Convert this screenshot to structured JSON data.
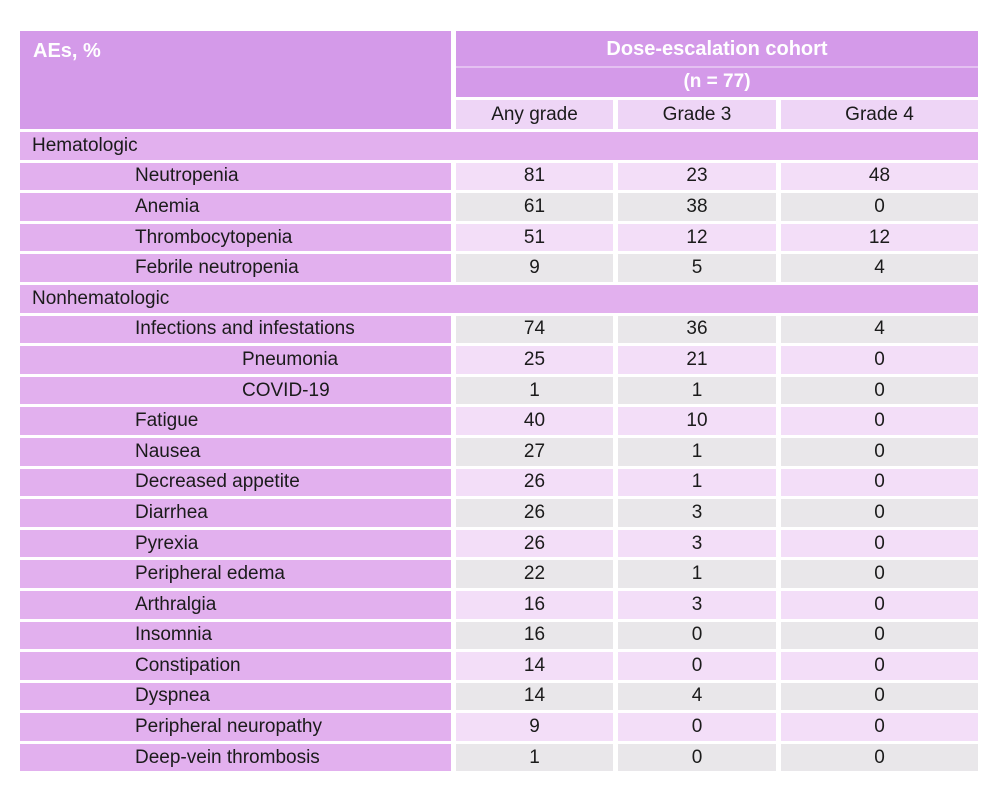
{
  "palette": {
    "background": "#ffffff",
    "header_purple": "#d49ae9",
    "row_purple": "#e2b0ee",
    "subheader_lavender": "#eed5f6",
    "cell_pink": "#f3def8",
    "cell_gray": "#e9e7ea",
    "header_text": "#ffffff",
    "body_text": "#1b1b1b"
  },
  "header": {
    "aes_label": "AEs, %",
    "cohort_title": "Dose-escalation cohort",
    "cohort_n": "(n = 77)",
    "columns": [
      "Any grade",
      "Grade 3",
      "Grade 4"
    ]
  },
  "rows": [
    {
      "type": "section",
      "label": "Hematologic"
    },
    {
      "type": "item",
      "indent": 1,
      "label": "Neutropenia",
      "values": [
        81,
        23,
        48
      ]
    },
    {
      "type": "item",
      "indent": 1,
      "label": "Anemia",
      "values": [
        61,
        38,
        0
      ]
    },
    {
      "type": "item",
      "indent": 1,
      "label": "Thrombocytopenia",
      "values": [
        51,
        12,
        12
      ]
    },
    {
      "type": "item",
      "indent": 1,
      "label": "Febrile neutropenia",
      "values": [
        9,
        5,
        4
      ]
    },
    {
      "type": "section",
      "label": "Nonhematologic"
    },
    {
      "type": "item",
      "indent": 1,
      "label": "Infections and infestations",
      "values": [
        74,
        36,
        4
      ]
    },
    {
      "type": "item",
      "indent": 2,
      "label": "Pneumonia",
      "values": [
        25,
        21,
        0
      ]
    },
    {
      "type": "item",
      "indent": 2,
      "label": "COVID-19",
      "values": [
        1,
        1,
        0
      ]
    },
    {
      "type": "item",
      "indent": 1,
      "label": "Fatigue",
      "values": [
        40,
        10,
        0
      ]
    },
    {
      "type": "item",
      "indent": 1,
      "label": "Nausea",
      "values": [
        27,
        1,
        0
      ]
    },
    {
      "type": "item",
      "indent": 1,
      "label": "Decreased appetite",
      "values": [
        26,
        1,
        0
      ]
    },
    {
      "type": "item",
      "indent": 1,
      "label": "Diarrhea",
      "values": [
        26,
        3,
        0
      ]
    },
    {
      "type": "item",
      "indent": 1,
      "label": "Pyrexia",
      "values": [
        26,
        3,
        0
      ]
    },
    {
      "type": "item",
      "indent": 1,
      "label": "Peripheral edema",
      "values": [
        22,
        1,
        0
      ]
    },
    {
      "type": "item",
      "indent": 1,
      "label": "Arthralgia",
      "values": [
        16,
        3,
        0
      ]
    },
    {
      "type": "item",
      "indent": 1,
      "label": "Insomnia",
      "values": [
        16,
        0,
        0
      ]
    },
    {
      "type": "item",
      "indent": 1,
      "label": "Constipation",
      "values": [
        14,
        0,
        0
      ]
    },
    {
      "type": "item",
      "indent": 1,
      "label": "Dyspnea",
      "values": [
        14,
        4,
        0
      ]
    },
    {
      "type": "item",
      "indent": 1,
      "label": "Peripheral neuropathy",
      "values": [
        9,
        0,
        0
      ]
    },
    {
      "type": "item",
      "indent": 1,
      "label": "Deep-vein thrombosis",
      "values": [
        1,
        0,
        0
      ]
    }
  ]
}
